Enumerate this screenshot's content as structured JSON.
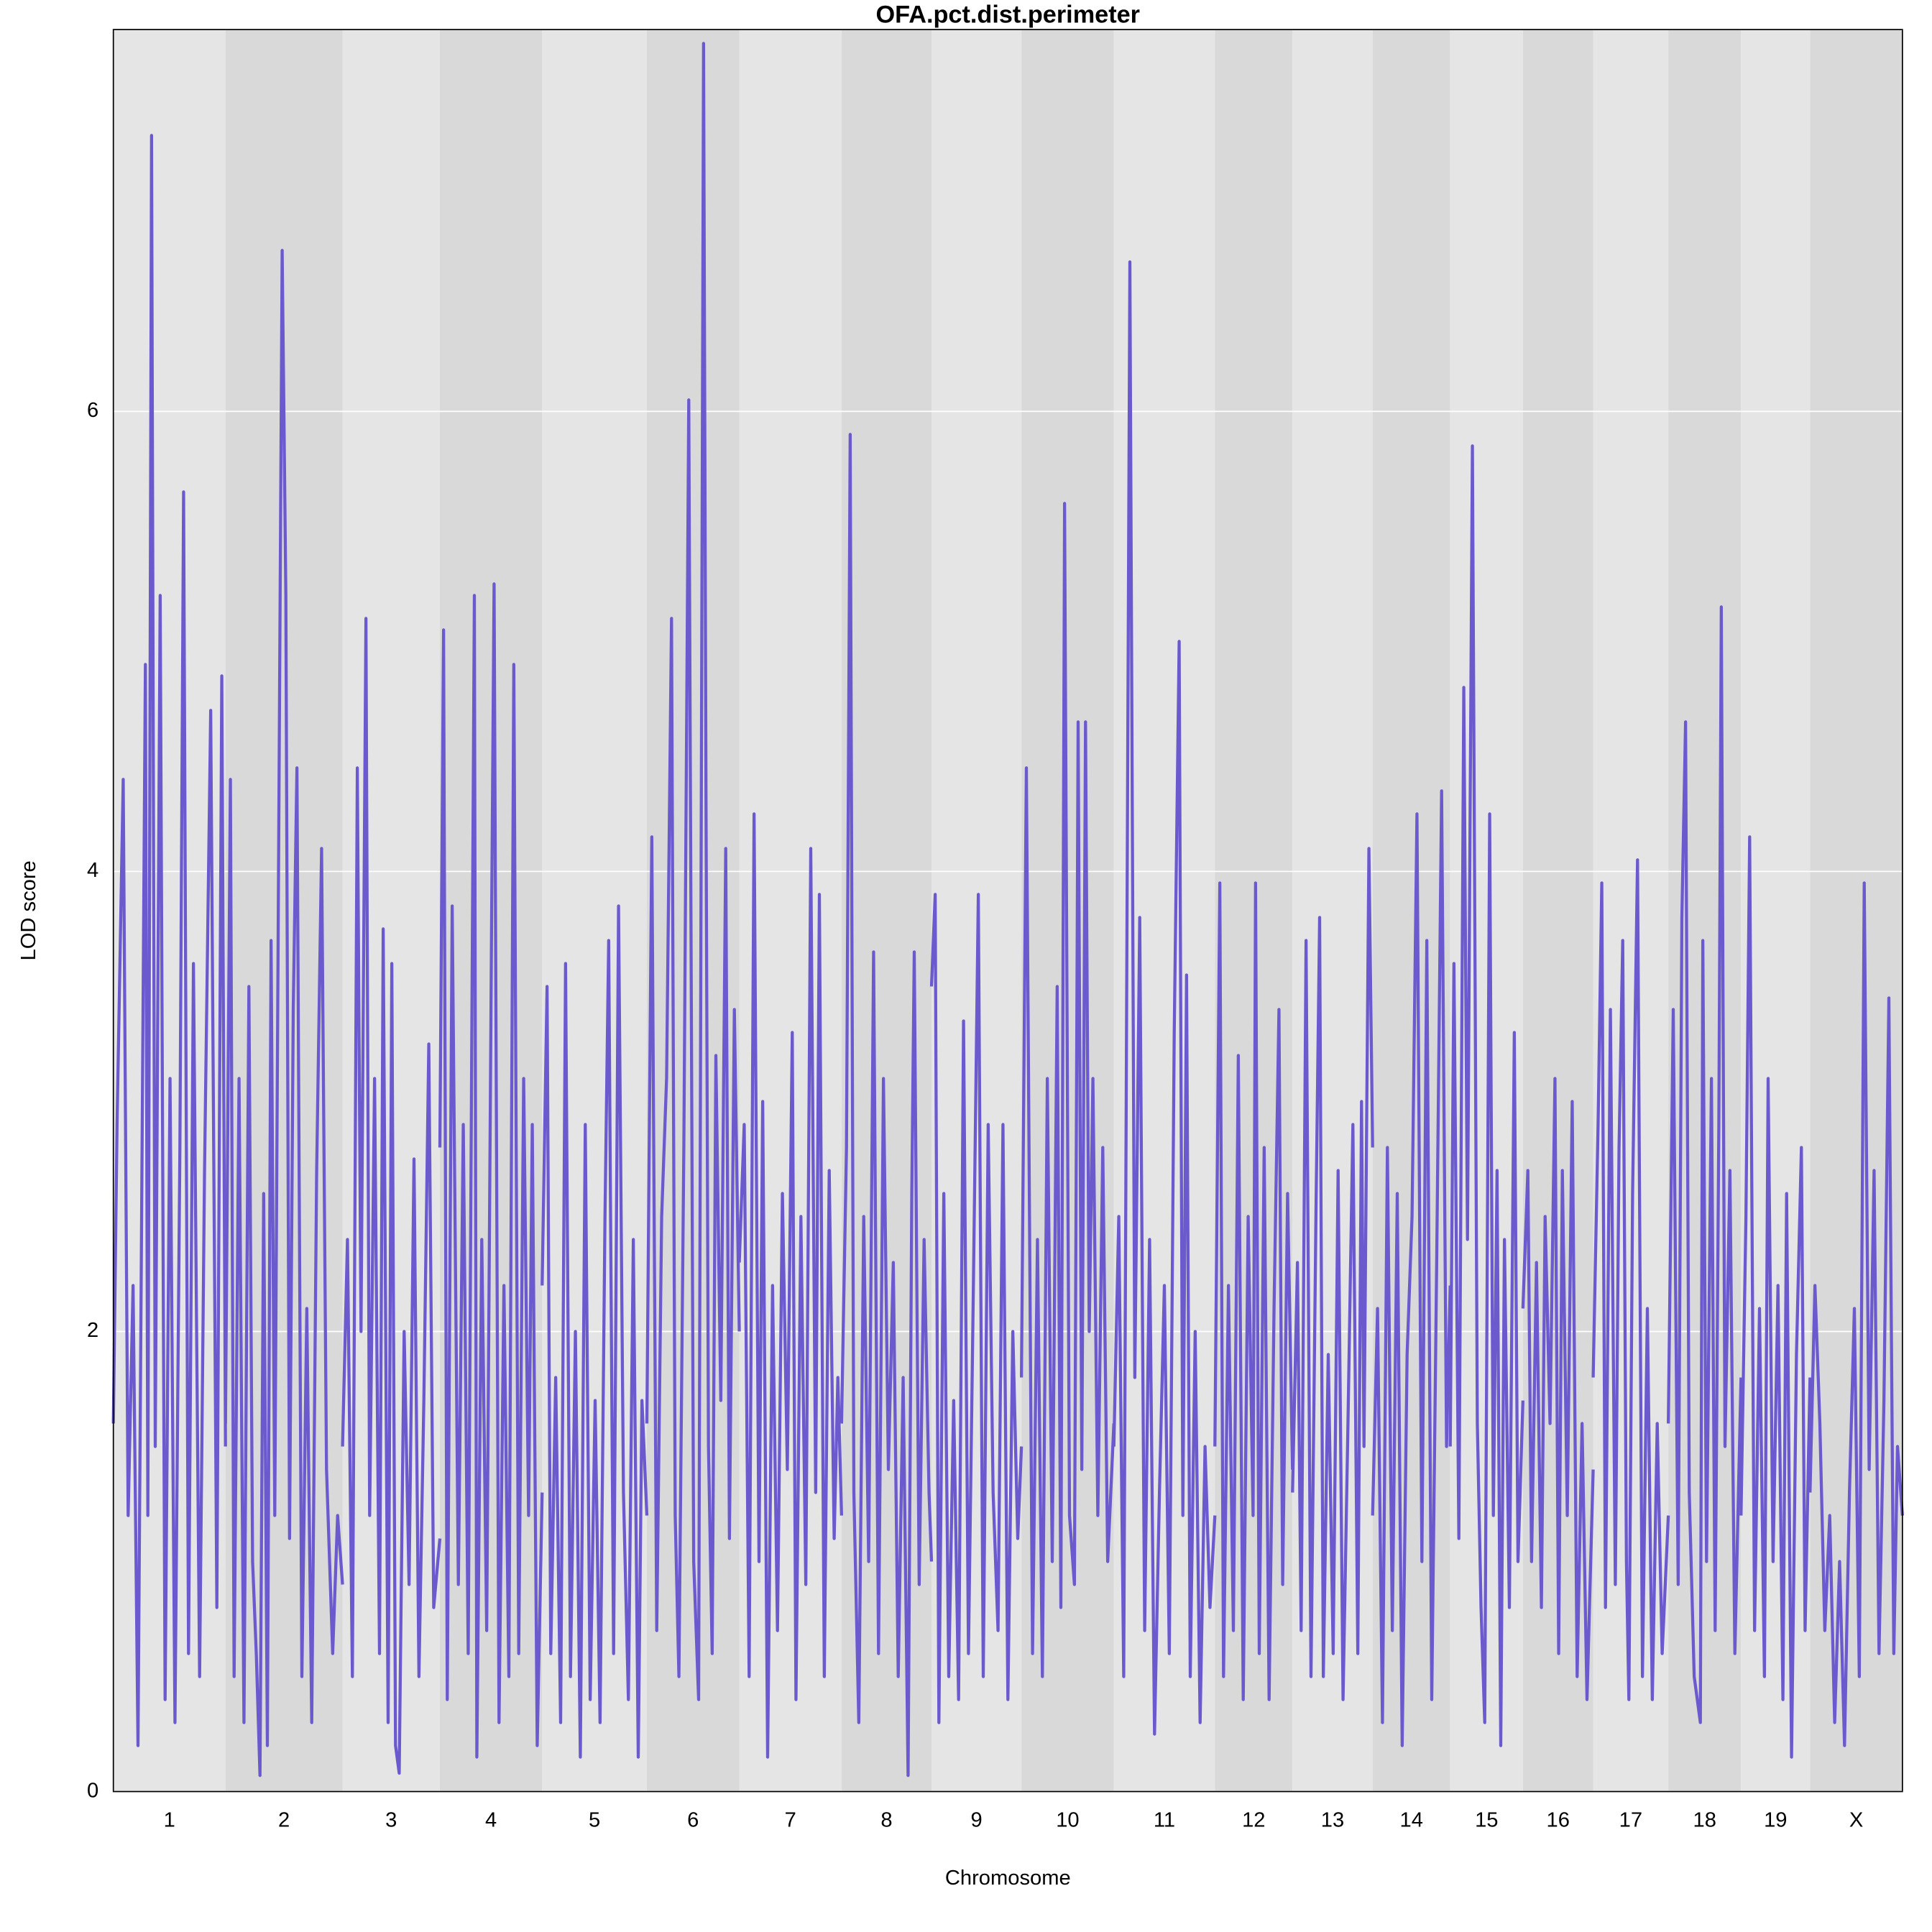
{
  "chart_data": {
    "type": "lod",
    "title": "OFA.pct.dist.perimeter",
    "xlabel": "Chromosome",
    "ylabel": "LOD score",
    "color": "#6a5acd",
    "band_colors": [
      "#e5e5e5",
      "#d9d9d9"
    ],
    "grid": true,
    "ylim": [
      0,
      7.66
    ],
    "yticks": [
      0,
      2,
      4,
      6
    ],
    "chromosomes": [
      {
        "name": "1",
        "length": 91,
        "positions": [
          0,
          3,
          8,
          12,
          16,
          20,
          26,
          28,
          31,
          34,
          38,
          42,
          46,
          50,
          54,
          57,
          61,
          65,
          70,
          74,
          79,
          84,
          88,
          91
        ],
        "values": [
          1.6,
          2.9,
          4.4,
          1.2,
          2.2,
          0.2,
          4.9,
          1.2,
          7.2,
          1.5,
          5.2,
          0.4,
          3.1,
          0.3,
          2.8,
          5.65,
          0.6,
          3.6,
          0.5,
          2.7,
          4.7,
          0.8,
          4.85,
          1.5
        ]
      },
      {
        "name": "2",
        "length": 95,
        "positions": [
          0,
          4,
          7,
          11,
          15,
          19,
          22,
          25,
          28,
          31,
          34,
          37,
          40,
          46,
          49,
          52,
          55,
          58,
          62,
          66,
          70,
          74,
          78,
          82,
          87,
          91,
          95
        ],
        "values": [
          1.6,
          4.4,
          0.5,
          3.1,
          0.3,
          3.5,
          1.0,
          0.6,
          0.07,
          2.6,
          0.2,
          3.7,
          1.2,
          6.7,
          5.2,
          1.1,
          3.4,
          4.45,
          0.5,
          2.1,
          0.3,
          2.7,
          4.1,
          1.4,
          0.6,
          1.2,
          0.9
        ]
      },
      {
        "name": "3",
        "length": 79,
        "positions": [
          0,
          4,
          8,
          12,
          15,
          19,
          22,
          26,
          30,
          33,
          37,
          40,
          43,
          46,
          50,
          54,
          58,
          62,
          66,
          70,
          74,
          79
        ],
        "values": [
          1.5,
          2.4,
          0.5,
          4.45,
          2.0,
          5.1,
          1.2,
          3.1,
          0.6,
          3.75,
          0.3,
          3.6,
          0.2,
          0.08,
          2.0,
          0.9,
          2.75,
          0.5,
          1.7,
          3.25,
          0.8,
          1.1
        ]
      },
      {
        "name": "4",
        "length": 83,
        "positions": [
          0,
          3,
          6,
          10,
          15,
          19,
          23,
          28,
          30,
          34,
          38,
          42,
          44,
          48,
          52,
          56,
          60,
          64,
          68,
          72,
          75,
          79,
          83
        ],
        "values": [
          2.8,
          5.05,
          0.4,
          3.85,
          0.9,
          2.9,
          0.6,
          5.2,
          0.15,
          2.4,
          0.7,
          3.8,
          5.25,
          0.3,
          2.2,
          0.5,
          4.9,
          0.6,
          3.1,
          1.2,
          2.9,
          0.2,
          1.3
        ]
      },
      {
        "name": "5",
        "length": 85,
        "positions": [
          0,
          4,
          7,
          11,
          15,
          19,
          23,
          27,
          31,
          35,
          39,
          43,
          47,
          51,
          54,
          58,
          62,
          66,
          70,
          74,
          78,
          81,
          85
        ],
        "values": [
          2.2,
          3.5,
          0.6,
          1.8,
          0.3,
          3.6,
          0.5,
          2.0,
          0.15,
          2.9,
          0.4,
          1.7,
          0.3,
          2.5,
          3.7,
          0.6,
          3.85,
          1.3,
          0.4,
          2.4,
          0.15,
          1.7,
          1.2
        ]
      },
      {
        "name": "6",
        "length": 75,
        "positions": [
          0,
          4,
          8,
          12,
          16,
          20,
          23,
          26,
          30,
          34,
          38,
          42,
          46,
          48,
          50,
          53,
          56,
          60,
          64,
          67,
          71,
          75
        ],
        "values": [
          1.6,
          4.15,
          0.7,
          2.5,
          3.1,
          5.1,
          1.2,
          0.5,
          2.8,
          6.05,
          1.0,
          0.4,
          7.6,
          4.3,
          1.5,
          0.6,
          3.2,
          1.7,
          4.1,
          1.1,
          3.4,
          2.0
        ]
      },
      {
        "name": "7",
        "length": 83,
        "positions": [
          0,
          4,
          8,
          12,
          16,
          19,
          23,
          27,
          31,
          35,
          39,
          43,
          46,
          50,
          54,
          58,
          62,
          65,
          69,
          73,
          77,
          80,
          83
        ],
        "values": [
          2.3,
          2.9,
          0.5,
          4.25,
          1.0,
          3.0,
          0.15,
          2.2,
          0.7,
          2.6,
          1.4,
          3.3,
          0.4,
          2.5,
          0.9,
          4.1,
          1.3,
          3.9,
          0.5,
          2.7,
          1.1,
          1.8,
          1.2
        ]
      },
      {
        "name": "8",
        "length": 73,
        "positions": [
          0,
          4,
          7,
          10,
          14,
          18,
          22,
          26,
          30,
          34,
          38,
          42,
          46,
          50,
          54,
          57,
          59,
          63,
          67,
          71,
          73
        ],
        "values": [
          1.6,
          2.8,
          5.9,
          1.3,
          0.3,
          2.5,
          1.0,
          3.65,
          0.6,
          3.1,
          1.4,
          2.3,
          0.5,
          1.8,
          0.07,
          2.6,
          3.65,
          0.9,
          2.4,
          1.3,
          1.0
        ]
      },
      {
        "name": "9",
        "length": 73,
        "positions": [
          0,
          3,
          6,
          10,
          14,
          18,
          22,
          26,
          30,
          34,
          38,
          42,
          46,
          50,
          54,
          58,
          62,
          66,
          70,
          73
        ],
        "values": [
          3.5,
          3.9,
          0.3,
          2.6,
          0.5,
          1.7,
          0.4,
          3.35,
          0.6,
          2.2,
          3.9,
          0.5,
          2.9,
          1.3,
          0.7,
          2.9,
          0.4,
          2.0,
          1.1,
          1.5
        ]
      },
      {
        "name": "10",
        "length": 75,
        "positions": [
          0,
          4,
          9,
          13,
          17,
          21,
          25,
          29,
          32,
          35,
          39,
          43,
          46,
          49,
          52,
          55,
          58,
          62,
          66,
          70,
          75
        ],
        "values": [
          1.8,
          4.45,
          0.6,
          2.4,
          0.5,
          3.1,
          1.0,
          3.5,
          0.8,
          5.6,
          1.2,
          0.9,
          4.65,
          1.4,
          4.65,
          2.0,
          3.1,
          1.2,
          2.8,
          1.0,
          1.6
        ]
      },
      {
        "name": "11",
        "length": 82,
        "positions": [
          0,
          4,
          8,
          13,
          17,
          21,
          25,
          29,
          33,
          37,
          41,
          45,
          49,
          53,
          56,
          59,
          62,
          66,
          70,
          74,
          78,
          82
        ],
        "values": [
          1.5,
          2.5,
          0.5,
          6.65,
          1.8,
          3.8,
          0.7,
          2.4,
          0.25,
          1.3,
          2.2,
          0.6,
          3.3,
          5.0,
          1.2,
          3.55,
          0.5,
          2.0,
          0.3,
          1.5,
          0.8,
          1.2
        ]
      },
      {
        "name": "12",
        "length": 63,
        "positions": [
          0,
          4,
          7,
          11,
          15,
          19,
          23,
          27,
          31,
          33,
          36,
          40,
          44,
          48,
          52,
          55,
          59,
          63
        ],
        "values": [
          1.5,
          3.95,
          0.5,
          2.2,
          0.7,
          3.2,
          0.4,
          2.5,
          1.2,
          3.95,
          0.6,
          2.8,
          0.4,
          2.1,
          3.4,
          0.9,
          2.6,
          1.4
        ]
      },
      {
        "name": "13",
        "length": 65,
        "positions": [
          0,
          4,
          7,
          11,
          15,
          19,
          22,
          25,
          29,
          33,
          37,
          41,
          45,
          49,
          53,
          56,
          58,
          62,
          65
        ],
        "values": [
          1.3,
          2.3,
          0.7,
          3.7,
          0.5,
          2.5,
          3.8,
          0.5,
          1.9,
          0.6,
          2.7,
          0.4,
          1.6,
          2.9,
          0.6,
          3.0,
          1.5,
          4.1,
          2.8
        ]
      },
      {
        "name": "14",
        "length": 63,
        "positions": [
          0,
          4,
          8,
          12,
          16,
          20,
          24,
          28,
          32,
          36,
          40,
          44,
          48,
          52,
          56,
          60,
          63
        ],
        "values": [
          1.2,
          2.1,
          0.3,
          2.8,
          0.7,
          2.6,
          0.2,
          1.9,
          2.5,
          4.25,
          1.0,
          3.7,
          0.4,
          2.3,
          4.35,
          1.5,
          2.2
        ]
      },
      {
        "name": "15",
        "length": 59,
        "positions": [
          0,
          3,
          7,
          11,
          14,
          18,
          22,
          25,
          28,
          32,
          35,
          38,
          41,
          44,
          48,
          52,
          55,
          59
        ],
        "values": [
          1.5,
          3.6,
          1.1,
          4.8,
          2.4,
          5.85,
          1.6,
          0.8,
          0.3,
          4.25,
          1.2,
          2.7,
          0.2,
          2.4,
          0.8,
          3.3,
          1.0,
          1.7
        ]
      },
      {
        "name": "16",
        "length": 57,
        "positions": [
          0,
          4,
          7,
          11,
          15,
          18,
          22,
          26,
          29,
          32,
          36,
          40,
          44,
          48,
          52,
          57
        ],
        "values": [
          2.1,
          2.7,
          1.0,
          2.3,
          0.8,
          2.5,
          1.6,
          3.1,
          0.6,
          2.7,
          1.2,
          3.0,
          0.5,
          1.6,
          0.4,
          1.4
        ]
      },
      {
        "name": "17",
        "length": 61,
        "positions": [
          0,
          4,
          7,
          10,
          14,
          18,
          21,
          24,
          27,
          29,
          32,
          36,
          40,
          44,
          48,
          52,
          56,
          61
        ],
        "values": [
          1.8,
          2.9,
          3.95,
          0.8,
          3.4,
          0.9,
          2.8,
          3.7,
          1.0,
          0.4,
          2.6,
          4.05,
          0.5,
          2.1,
          0.4,
          1.6,
          0.6,
          1.2
        ]
      },
      {
        "name": "18",
        "length": 59,
        "positions": [
          0,
          4,
          8,
          11,
          14,
          17,
          21,
          26,
          28,
          31,
          35,
          38,
          41,
          43,
          46,
          50,
          54,
          59
        ],
        "values": [
          1.6,
          3.4,
          0.9,
          3.8,
          4.65,
          1.3,
          0.5,
          0.3,
          3.7,
          1.0,
          3.1,
          0.7,
          2.9,
          5.15,
          1.5,
          2.7,
          0.6,
          1.8
        ]
      },
      {
        "name": "19",
        "length": 56,
        "positions": [
          0,
          4,
          7,
          11,
          15,
          19,
          22,
          26,
          30,
          34,
          37,
          41,
          45,
          49,
          52,
          56
        ],
        "values": [
          1.2,
          2.5,
          4.15,
          0.7,
          2.1,
          0.5,
          3.1,
          1.0,
          2.2,
          0.4,
          2.6,
          0.15,
          1.9,
          2.8,
          0.7,
          1.8
        ]
      },
      {
        "name": "X",
        "length": 75,
        "positions": [
          0,
          4,
          8,
          12,
          16,
          20,
          24,
          28,
          32,
          36,
          40,
          44,
          48,
          52,
          56,
          60,
          64,
          68,
          71,
          75
        ],
        "values": [
          1.3,
          2.2,
          1.6,
          0.7,
          1.2,
          0.3,
          1.0,
          0.2,
          1.3,
          2.1,
          0.5,
          3.95,
          1.4,
          2.7,
          0.6,
          1.7,
          3.45,
          0.6,
          1.5,
          1.2
        ]
      }
    ]
  }
}
